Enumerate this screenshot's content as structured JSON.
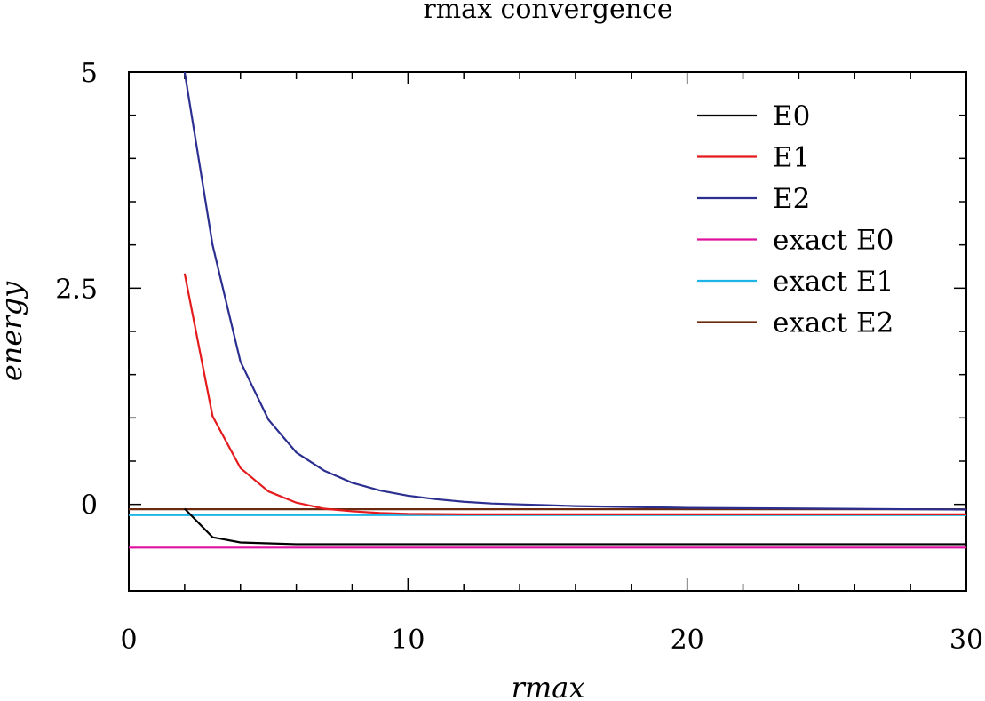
{
  "chart_data": {
    "type": "line",
    "title": "rmax convergence",
    "xlabel": "rmax",
    "ylabel": "energy",
    "xlim": [
      0,
      30
    ],
    "ylim": [
      -1,
      5
    ],
    "x_ticks": [
      0,
      10,
      20,
      30
    ],
    "x_tick_labels": [
      "0",
      "10",
      "20",
      "30"
    ],
    "y_ticks": [
      0,
      2.5,
      5
    ],
    "y_tick_labels": [
      "0",
      "2.5",
      "5"
    ],
    "grid": false,
    "legend_position": "top-right",
    "series": [
      {
        "name": "E0",
        "color": "#000000",
        "x": [
          2,
          3,
          4,
          5,
          6,
          7,
          8,
          10,
          12,
          15,
          20,
          25,
          30
        ],
        "y": [
          -0.05,
          -0.38,
          -0.44,
          -0.45,
          -0.46,
          -0.46,
          -0.46,
          -0.46,
          -0.46,
          -0.46,
          -0.46,
          -0.46,
          -0.46
        ]
      },
      {
        "name": "E1",
        "color": "#e41a1c",
        "x": [
          2,
          3,
          4,
          5,
          6,
          7,
          8,
          9,
          10,
          12,
          15,
          20,
          25,
          30
        ],
        "y": [
          2.67,
          1.02,
          0.42,
          0.15,
          0.02,
          -0.05,
          -0.08,
          -0.1,
          -0.11,
          -0.115,
          -0.115,
          -0.115,
          -0.115,
          -0.115
        ]
      },
      {
        "name": "E2",
        "color": "#2b2f8f",
        "x": [
          2,
          3,
          4,
          5,
          6,
          7,
          8,
          9,
          10,
          11,
          12,
          13,
          14,
          15,
          16,
          18,
          20,
          25,
          30
        ],
        "y": [
          5.0,
          3.0,
          1.65,
          0.98,
          0.6,
          0.39,
          0.25,
          0.16,
          0.1,
          0.06,
          0.03,
          0.01,
          0.0,
          -0.01,
          -0.02,
          -0.03,
          -0.04,
          -0.05,
          -0.06
        ]
      },
      {
        "name": "exact E0",
        "color": "#e0119e",
        "x": [
          0,
          30
        ],
        "y": [
          -0.5,
          -0.5
        ]
      },
      {
        "name": "exact E1",
        "color": "#1fb4e6",
        "x": [
          0,
          30
        ],
        "y": [
          -0.125,
          -0.125
        ]
      },
      {
        "name": "exact E2",
        "color": "#6b2a0e",
        "x": [
          0,
          30
        ],
        "y": [
          -0.056,
          -0.056
        ]
      }
    ]
  }
}
